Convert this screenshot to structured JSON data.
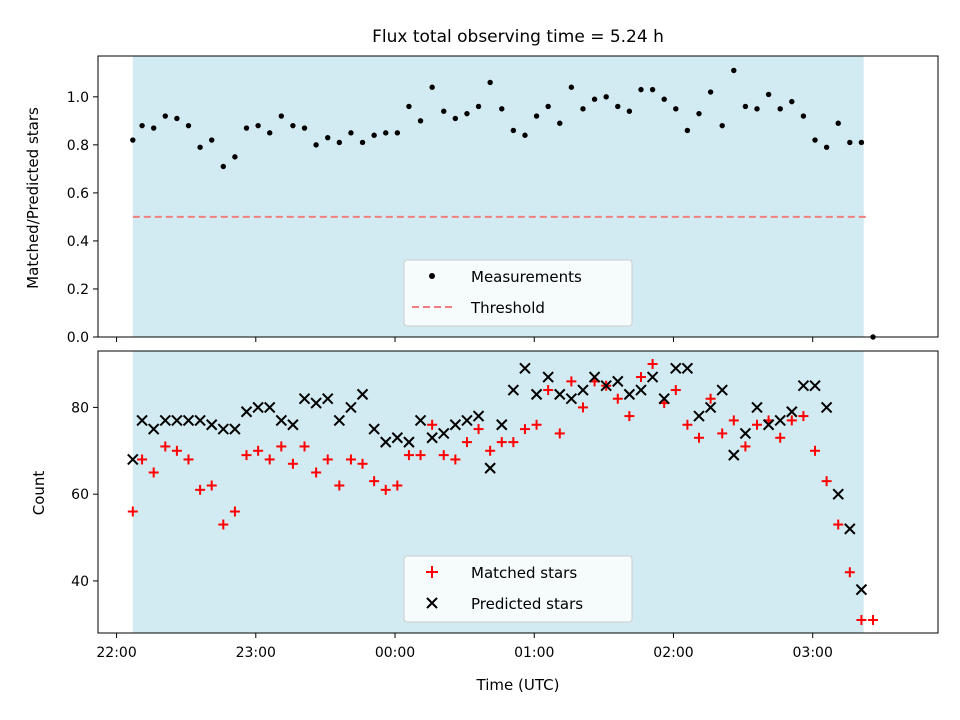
{
  "chart_data": [
    {
      "type": "scatter",
      "title": "Flux total observing time = 5.24 h",
      "xlabel": "",
      "ylabel": "Matched/Predicted stars",
      "ylim": [
        0,
        1.17
      ],
      "yticks": [
        0.0,
        0.2,
        0.4,
        0.6,
        0.8,
        1.0
      ],
      "ytick_labels": [
        "0.0",
        "0.2",
        "0.4",
        "0.6",
        "0.8",
        "1.0"
      ],
      "xlim": [
        "21:52",
        "03:54"
      ],
      "xticks": [
        "22:00",
        "23:00",
        "00:00",
        "01:00",
        "02:00",
        "03:00"
      ],
      "shaded_span": {
        "start": "22:07",
        "end": "03:22",
        "color": "#add8e6"
      },
      "threshold": {
        "name": "Threshold",
        "value": 0.5,
        "color": "#f08080"
      },
      "series": [
        {
          "name": "Measurements",
          "color": "#000000",
          "marker": "dot",
          "points": [
            [
              "22:07",
              0.82
            ],
            [
              "22:11",
              0.88
            ],
            [
              "22:16",
              0.87
            ],
            [
              "22:21",
              0.92
            ],
            [
              "22:26",
              0.91
            ],
            [
              "22:31",
              0.88
            ],
            [
              "22:36",
              0.79
            ],
            [
              "22:41",
              0.82
            ],
            [
              "22:46",
              0.71
            ],
            [
              "22:51",
              0.75
            ],
            [
              "22:56",
              0.87
            ],
            [
              "23:01",
              0.88
            ],
            [
              "23:06",
              0.85
            ],
            [
              "23:11",
              0.92
            ],
            [
              "23:16",
              0.88
            ],
            [
              "23:21",
              0.87
            ],
            [
              "23:26",
              0.8
            ],
            [
              "23:31",
              0.83
            ],
            [
              "23:36",
              0.81
            ],
            [
              "23:41",
              0.85
            ],
            [
              "23:46",
              0.81
            ],
            [
              "23:51",
              0.84
            ],
            [
              "23:56",
              0.85
            ],
            [
              "00:01",
              0.85
            ],
            [
              "00:06",
              0.96
            ],
            [
              "00:11",
              0.9
            ],
            [
              "00:16",
              1.04
            ],
            [
              "00:21",
              0.94
            ],
            [
              "00:26",
              0.91
            ],
            [
              "00:31",
              0.93
            ],
            [
              "00:36",
              0.96
            ],
            [
              "00:41",
              1.06
            ],
            [
              "00:46",
              0.95
            ],
            [
              "00:51",
              0.86
            ],
            [
              "00:56",
              0.84
            ],
            [
              "01:01",
              0.92
            ],
            [
              "01:06",
              0.96
            ],
            [
              "01:11",
              0.89
            ],
            [
              "01:16",
              1.04
            ],
            [
              "01:21",
              0.95
            ],
            [
              "01:26",
              0.99
            ],
            [
              "01:31",
              1.0
            ],
            [
              "01:36",
              0.96
            ],
            [
              "01:41",
              0.94
            ],
            [
              "01:46",
              1.03
            ],
            [
              "01:51",
              1.03
            ],
            [
              "01:56",
              0.99
            ],
            [
              "02:01",
              0.95
            ],
            [
              "02:06",
              0.86
            ],
            [
              "02:11",
              0.93
            ],
            [
              "02:16",
              1.02
            ],
            [
              "02:21",
              0.88
            ],
            [
              "02:26",
              1.11
            ],
            [
              "02:31",
              0.96
            ],
            [
              "02:36",
              0.95
            ],
            [
              "02:41",
              1.01
            ],
            [
              "02:46",
              0.95
            ],
            [
              "02:51",
              0.98
            ],
            [
              "02:56",
              0.92
            ],
            [
              "03:01",
              0.82
            ],
            [
              "03:06",
              0.79
            ],
            [
              "03:11",
              0.89
            ],
            [
              "03:16",
              0.81
            ],
            [
              "03:21",
              0.81
            ],
            [
              "03:26",
              0.0
            ]
          ]
        }
      ],
      "legend": {
        "placement": "lower center",
        "entries": [
          "Measurements",
          "Threshold"
        ]
      }
    },
    {
      "type": "scatter",
      "title": "",
      "xlabel": "Time (UTC)",
      "ylabel": "Count",
      "ylim": [
        28,
        93
      ],
      "yticks": [
        40,
        60,
        80
      ],
      "ytick_labels": [
        "40",
        "60",
        "80"
      ],
      "xlim": [
        "21:52",
        "03:54"
      ],
      "xticks": [
        "22:00",
        "23:00",
        "00:00",
        "01:00",
        "02:00",
        "03:00"
      ],
      "xtick_labels": [
        "22:00",
        "23:00",
        "00:00",
        "01:00",
        "02:00",
        "03:00"
      ],
      "shaded_span": {
        "start": "22:07",
        "end": "03:22",
        "color": "#add8e6"
      },
      "series": [
        {
          "name": "Matched stars",
          "color": "#ff0000",
          "marker": "plus",
          "points": [
            [
              "22:07",
              56
            ],
            [
              "22:11",
              68
            ],
            [
              "22:16",
              65
            ],
            [
              "22:21",
              71
            ],
            [
              "22:26",
              70
            ],
            [
              "22:31",
              68
            ],
            [
              "22:36",
              61
            ],
            [
              "22:41",
              62
            ],
            [
              "22:46",
              53
            ],
            [
              "22:51",
              56
            ],
            [
              "22:56",
              69
            ],
            [
              "23:01",
              70
            ],
            [
              "23:06",
              68
            ],
            [
              "23:11",
              71
            ],
            [
              "23:16",
              67
            ],
            [
              "23:21",
              71
            ],
            [
              "23:26",
              65
            ],
            [
              "23:31",
              68
            ],
            [
              "23:36",
              62
            ],
            [
              "23:41",
              68
            ],
            [
              "23:46",
              67
            ],
            [
              "23:51",
              63
            ],
            [
              "23:56",
              61
            ],
            [
              "00:01",
              62
            ],
            [
              "00:06",
              69
            ],
            [
              "00:11",
              69
            ],
            [
              "00:16",
              76
            ],
            [
              "00:21",
              69
            ],
            [
              "00:26",
              68
            ],
            [
              "00:31",
              72
            ],
            [
              "00:36",
              75
            ],
            [
              "00:41",
              70
            ],
            [
              "00:46",
              72
            ],
            [
              "00:51",
              72
            ],
            [
              "00:56",
              75
            ],
            [
              "01:01",
              76
            ],
            [
              "01:06",
              84
            ],
            [
              "01:11",
              74
            ],
            [
              "01:16",
              86
            ],
            [
              "01:21",
              80
            ],
            [
              "01:26",
              86
            ],
            [
              "01:31",
              85
            ],
            [
              "01:36",
              82
            ],
            [
              "01:41",
              78
            ],
            [
              "01:46",
              87
            ],
            [
              "01:51",
              90
            ],
            [
              "01:56",
              81
            ],
            [
              "02:01",
              84
            ],
            [
              "02:06",
              76
            ],
            [
              "02:11",
              73
            ],
            [
              "02:16",
              82
            ],
            [
              "02:21",
              74
            ],
            [
              "02:26",
              77
            ],
            [
              "02:31",
              71
            ],
            [
              "02:36",
              76
            ],
            [
              "02:41",
              77
            ],
            [
              "02:46",
              73
            ],
            [
              "02:51",
              77
            ],
            [
              "02:56",
              78
            ],
            [
              "03:01",
              70
            ],
            [
              "03:06",
              63
            ],
            [
              "03:11",
              53
            ],
            [
              "03:16",
              42
            ],
            [
              "03:21",
              31
            ],
            [
              "03:26",
              31
            ]
          ]
        },
        {
          "name": "Predicted stars",
          "color": "#000000",
          "marker": "x",
          "points": [
            [
              "22:07",
              68
            ],
            [
              "22:11",
              77
            ],
            [
              "22:16",
              75
            ],
            [
              "22:21",
              77
            ],
            [
              "22:26",
              77
            ],
            [
              "22:31",
              77
            ],
            [
              "22:36",
              77
            ],
            [
              "22:41",
              76
            ],
            [
              "22:46",
              75
            ],
            [
              "22:51",
              75
            ],
            [
              "22:56",
              79
            ],
            [
              "23:01",
              80
            ],
            [
              "23:06",
              80
            ],
            [
              "23:11",
              77
            ],
            [
              "23:16",
              76
            ],
            [
              "23:21",
              82
            ],
            [
              "23:26",
              81
            ],
            [
              "23:31",
              82
            ],
            [
              "23:36",
              77
            ],
            [
              "23:41",
              80
            ],
            [
              "23:46",
              83
            ],
            [
              "23:51",
              75
            ],
            [
              "23:56",
              72
            ],
            [
              "00:01",
              73
            ],
            [
              "00:06",
              72
            ],
            [
              "00:11",
              77
            ],
            [
              "00:16",
              73
            ],
            [
              "00:21",
              74
            ],
            [
              "00:26",
              76
            ],
            [
              "00:31",
              77
            ],
            [
              "00:36",
              78
            ],
            [
              "00:41",
              66
            ],
            [
              "00:46",
              76
            ],
            [
              "00:51",
              84
            ],
            [
              "00:56",
              89
            ],
            [
              "01:01",
              83
            ],
            [
              "01:06",
              87
            ],
            [
              "01:11",
              83
            ],
            [
              "01:16",
              82
            ],
            [
              "01:21",
              84
            ],
            [
              "01:26",
              87
            ],
            [
              "01:31",
              85
            ],
            [
              "01:36",
              86
            ],
            [
              "01:41",
              83
            ],
            [
              "01:46",
              84
            ],
            [
              "01:51",
              87
            ],
            [
              "01:56",
              82
            ],
            [
              "02:01",
              89
            ],
            [
              "02:06",
              89
            ],
            [
              "02:11",
              78
            ],
            [
              "02:16",
              80
            ],
            [
              "02:21",
              84
            ],
            [
              "02:26",
              69
            ],
            [
              "02:31",
              74
            ],
            [
              "02:36",
              80
            ],
            [
              "02:41",
              76
            ],
            [
              "02:46",
              77
            ],
            [
              "02:51",
              79
            ],
            [
              "02:56",
              85
            ],
            [
              "03:01",
              85
            ],
            [
              "03:06",
              80
            ],
            [
              "03:11",
              60
            ],
            [
              "03:16",
              52
            ],
            [
              "03:21",
              38
            ]
          ]
        }
      ],
      "legend": {
        "placement": "lower center",
        "entries": [
          "Matched stars",
          "Predicted stars"
        ]
      }
    }
  ]
}
